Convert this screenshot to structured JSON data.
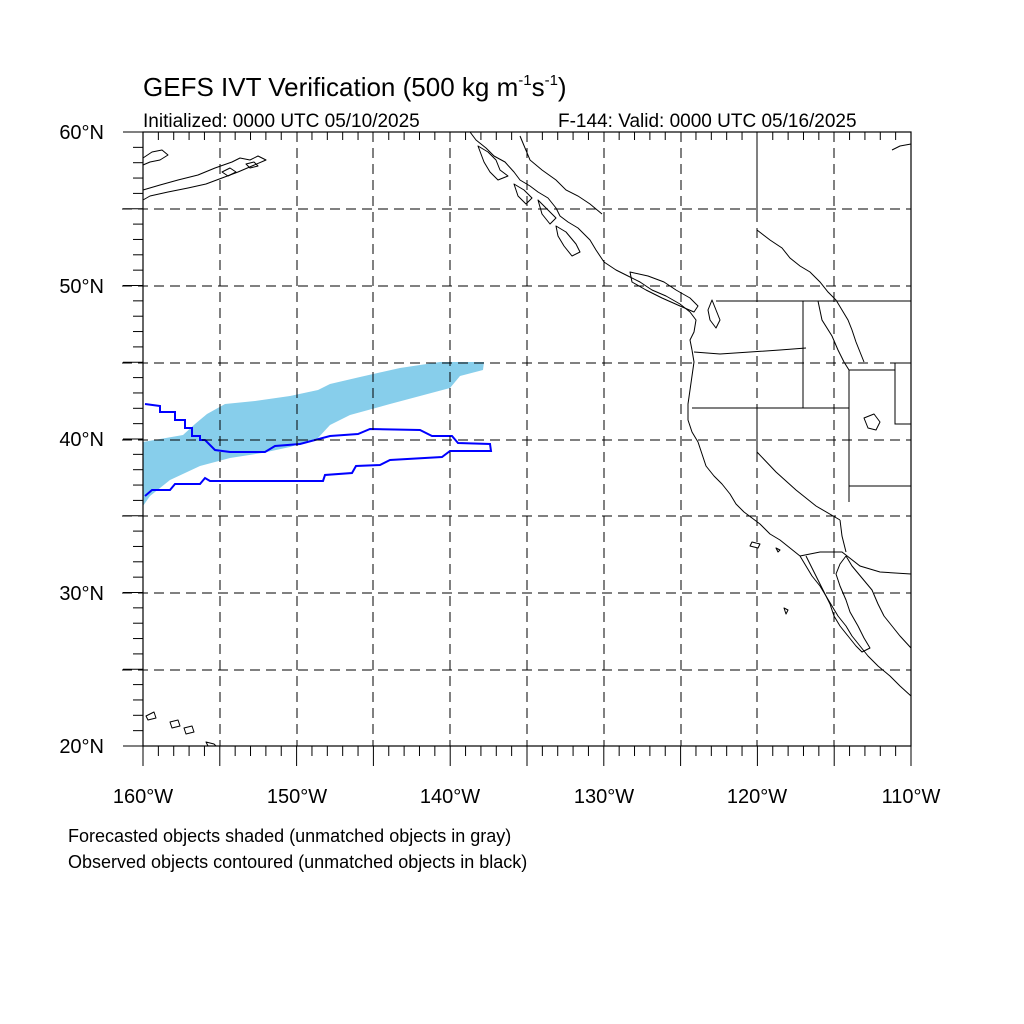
{
  "title": {
    "prefix": "GEFS IVT Verification (500 kg m",
    "exp1": "-1",
    "mid": "s",
    "exp2": "-1",
    "suffix": ")"
  },
  "init_label": "Initialized: 0000 UTC 05/10/2025",
  "valid_label": "F-144: Valid: 0000 UTC 05/16/2025",
  "lat_labels": [
    "60°N",
    "50°N",
    "40°N",
    "30°N",
    "20°N"
  ],
  "lon_labels": [
    "160°W",
    "150°W",
    "140°W",
    "130°W",
    "120°W",
    "110°W"
  ],
  "notes": [
    "Forecasted objects shaded (unmatched objects in gray)",
    "Observed objects contoured (unmatched objects in black)"
  ],
  "colors": {
    "forecast_fill": "#87ceeb",
    "observed_contour": "#0000ff",
    "coastline": "#000000",
    "grid": "#000000"
  },
  "map_extent": {
    "lon_min": -160,
    "lon_max": -110,
    "lat_min": 20,
    "lat_max": 60
  }
}
